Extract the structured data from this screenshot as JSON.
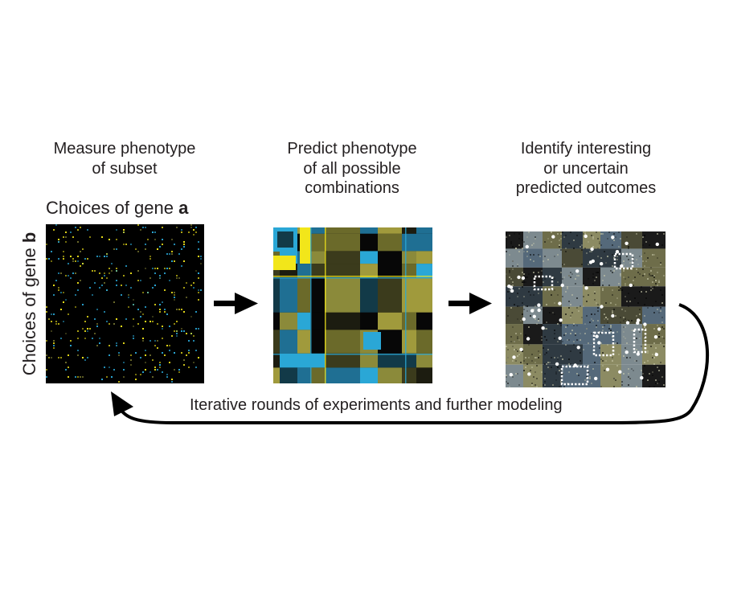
{
  "steps": [
    {
      "title": "Measure phenotype\nof subset"
    },
    {
      "title": "Predict phenotype\nof all possible\ncombinations"
    },
    {
      "title": "Identify interesting\nor uncertain\npredicted outcomes"
    }
  ],
  "axes": {
    "x_prefix": "Choices of gene ",
    "x_var": "a",
    "y_prefix": "Choices of gene ",
    "y_var": "b"
  },
  "loop_label": "Iterative rounds of experiments and further modeling",
  "colors": {
    "background": "#000000",
    "yellow": "#f2e61a",
    "olive": "#6b6a2a",
    "blue": "#2aa7d6",
    "dark_blue": "#123a48",
    "arrow": "#000000",
    "highlight": "#ffffff"
  }
}
